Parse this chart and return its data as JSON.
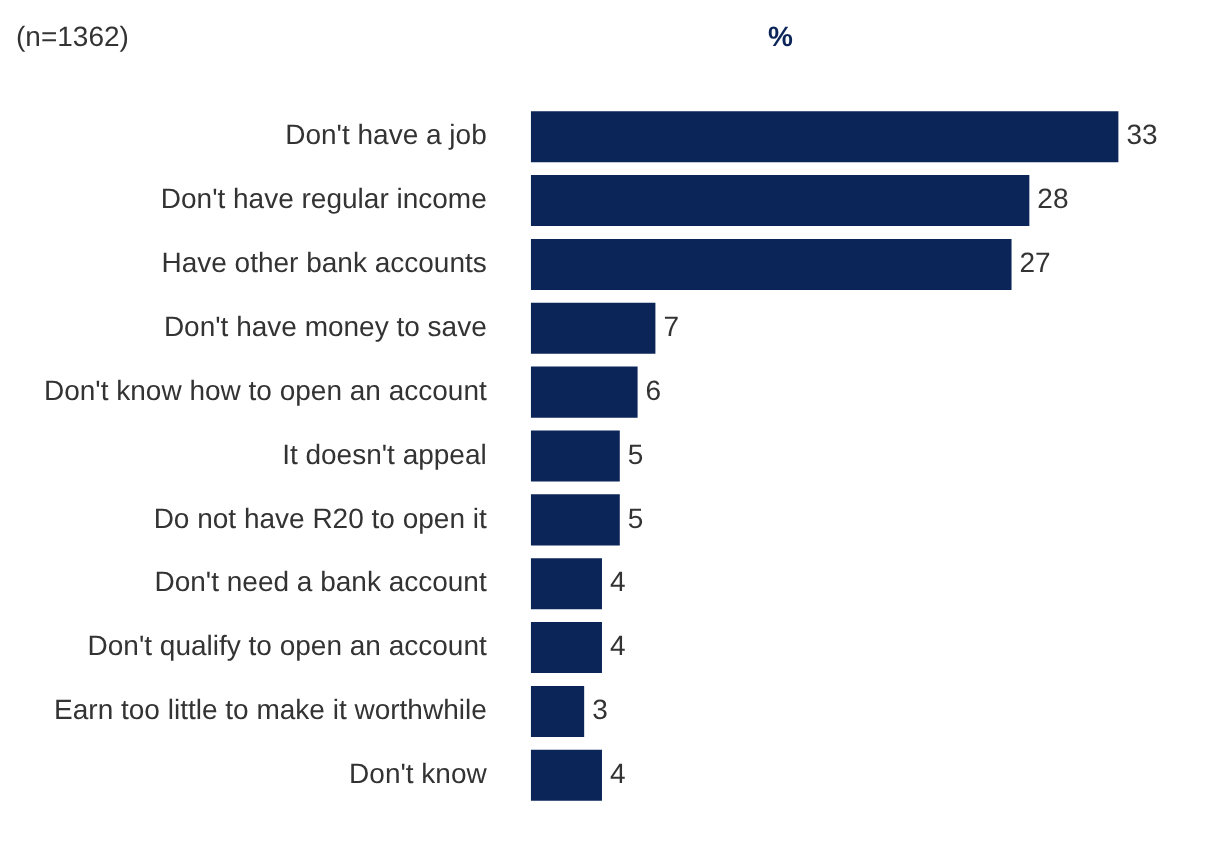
{
  "chart_data": {
    "type": "bar",
    "orientation": "horizontal",
    "xlabel": "%",
    "annotations": [
      "(n=1362)"
    ],
    "categories": [
      "Don't have a job",
      "Don't have regular income",
      "Have other bank accounts",
      "Don't have money to save",
      "Don't know how to open an account",
      "It doesn't appeal",
      "Do not have R20 to open it",
      "Don't need a bank account",
      "Don't qualify to open an account",
      "Earn too little to make it worthwhile",
      "Don't know"
    ],
    "values": [
      33,
      28,
      27,
      7,
      6,
      5,
      5,
      4,
      4,
      3,
      4
    ],
    "color": "#0b2559",
    "data_labels": true,
    "grid": false,
    "legend": false
  }
}
